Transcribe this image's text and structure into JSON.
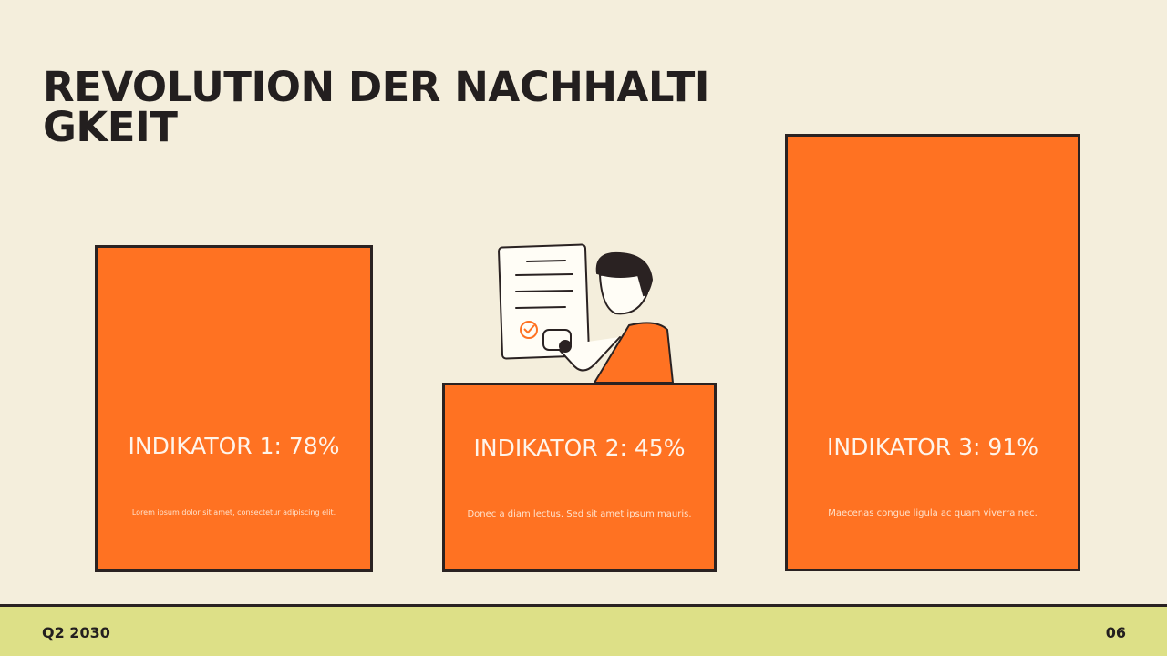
{
  "header": {
    "title": "REVOLUTION DER NACHHALTIGKEIT"
  },
  "cards": [
    {
      "label": "INDIKATOR 1: 78%",
      "description": "Lorem ipsum dolor sit amet, consectetur adipiscing elit."
    },
    {
      "label": "INDIKATOR 2: 45%",
      "description": "Donec a diam lectus. Sed sit amet ipsum mauris."
    },
    {
      "label": "INDIKATOR 3: 91%",
      "description": "Maecenas congue ligula ac quam viverra nec."
    }
  ],
  "footer": {
    "date": "Q2 2030",
    "page": "06"
  }
}
